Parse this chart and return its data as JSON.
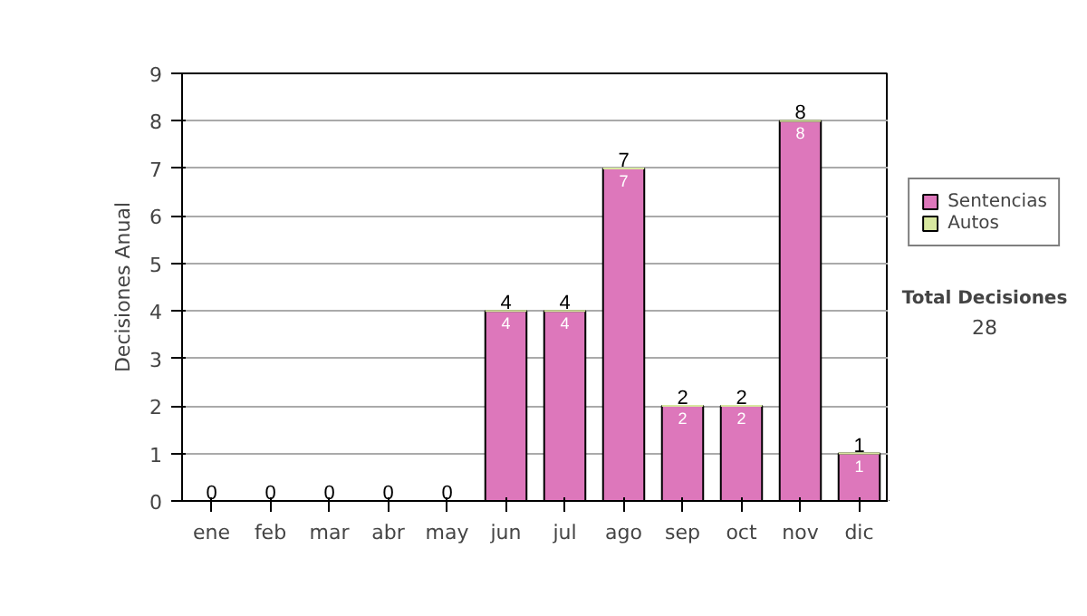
{
  "chart_data": {
    "type": "bar",
    "ylabel": "Decisiones Anual",
    "categories": [
      "ene",
      "feb",
      "mar",
      "abr",
      "may",
      "jun",
      "jul",
      "ago",
      "sep",
      "oct",
      "nov",
      "dic"
    ],
    "stacked": true,
    "series": [
      {
        "name": "Sentencias",
        "color": "#dd77bb",
        "values": [
          0,
          0,
          0,
          0,
          0,
          4,
          4,
          7,
          2,
          2,
          8,
          1
        ],
        "value_labels": [
          null,
          null,
          null,
          null,
          null,
          "4",
          "4",
          "7",
          "2",
          "2",
          "8",
          "1"
        ]
      },
      {
        "name": "Autos",
        "color": "#d8e8a0",
        "values": [
          0,
          0,
          0,
          0,
          0,
          0,
          0,
          0,
          0,
          0,
          0,
          0
        ]
      }
    ],
    "totals": [
      "0",
      "0",
      "0",
      "0",
      "0",
      "4",
      "4",
      "7",
      "2",
      "2",
      "8",
      "1"
    ],
    "ylim": [
      0,
      9
    ],
    "yticks": [
      0,
      1,
      2,
      3,
      4,
      5,
      6,
      7,
      8,
      9
    ],
    "grid": "y",
    "legend": "right",
    "annotations": [
      "Total Decisiones",
      "28"
    ]
  }
}
